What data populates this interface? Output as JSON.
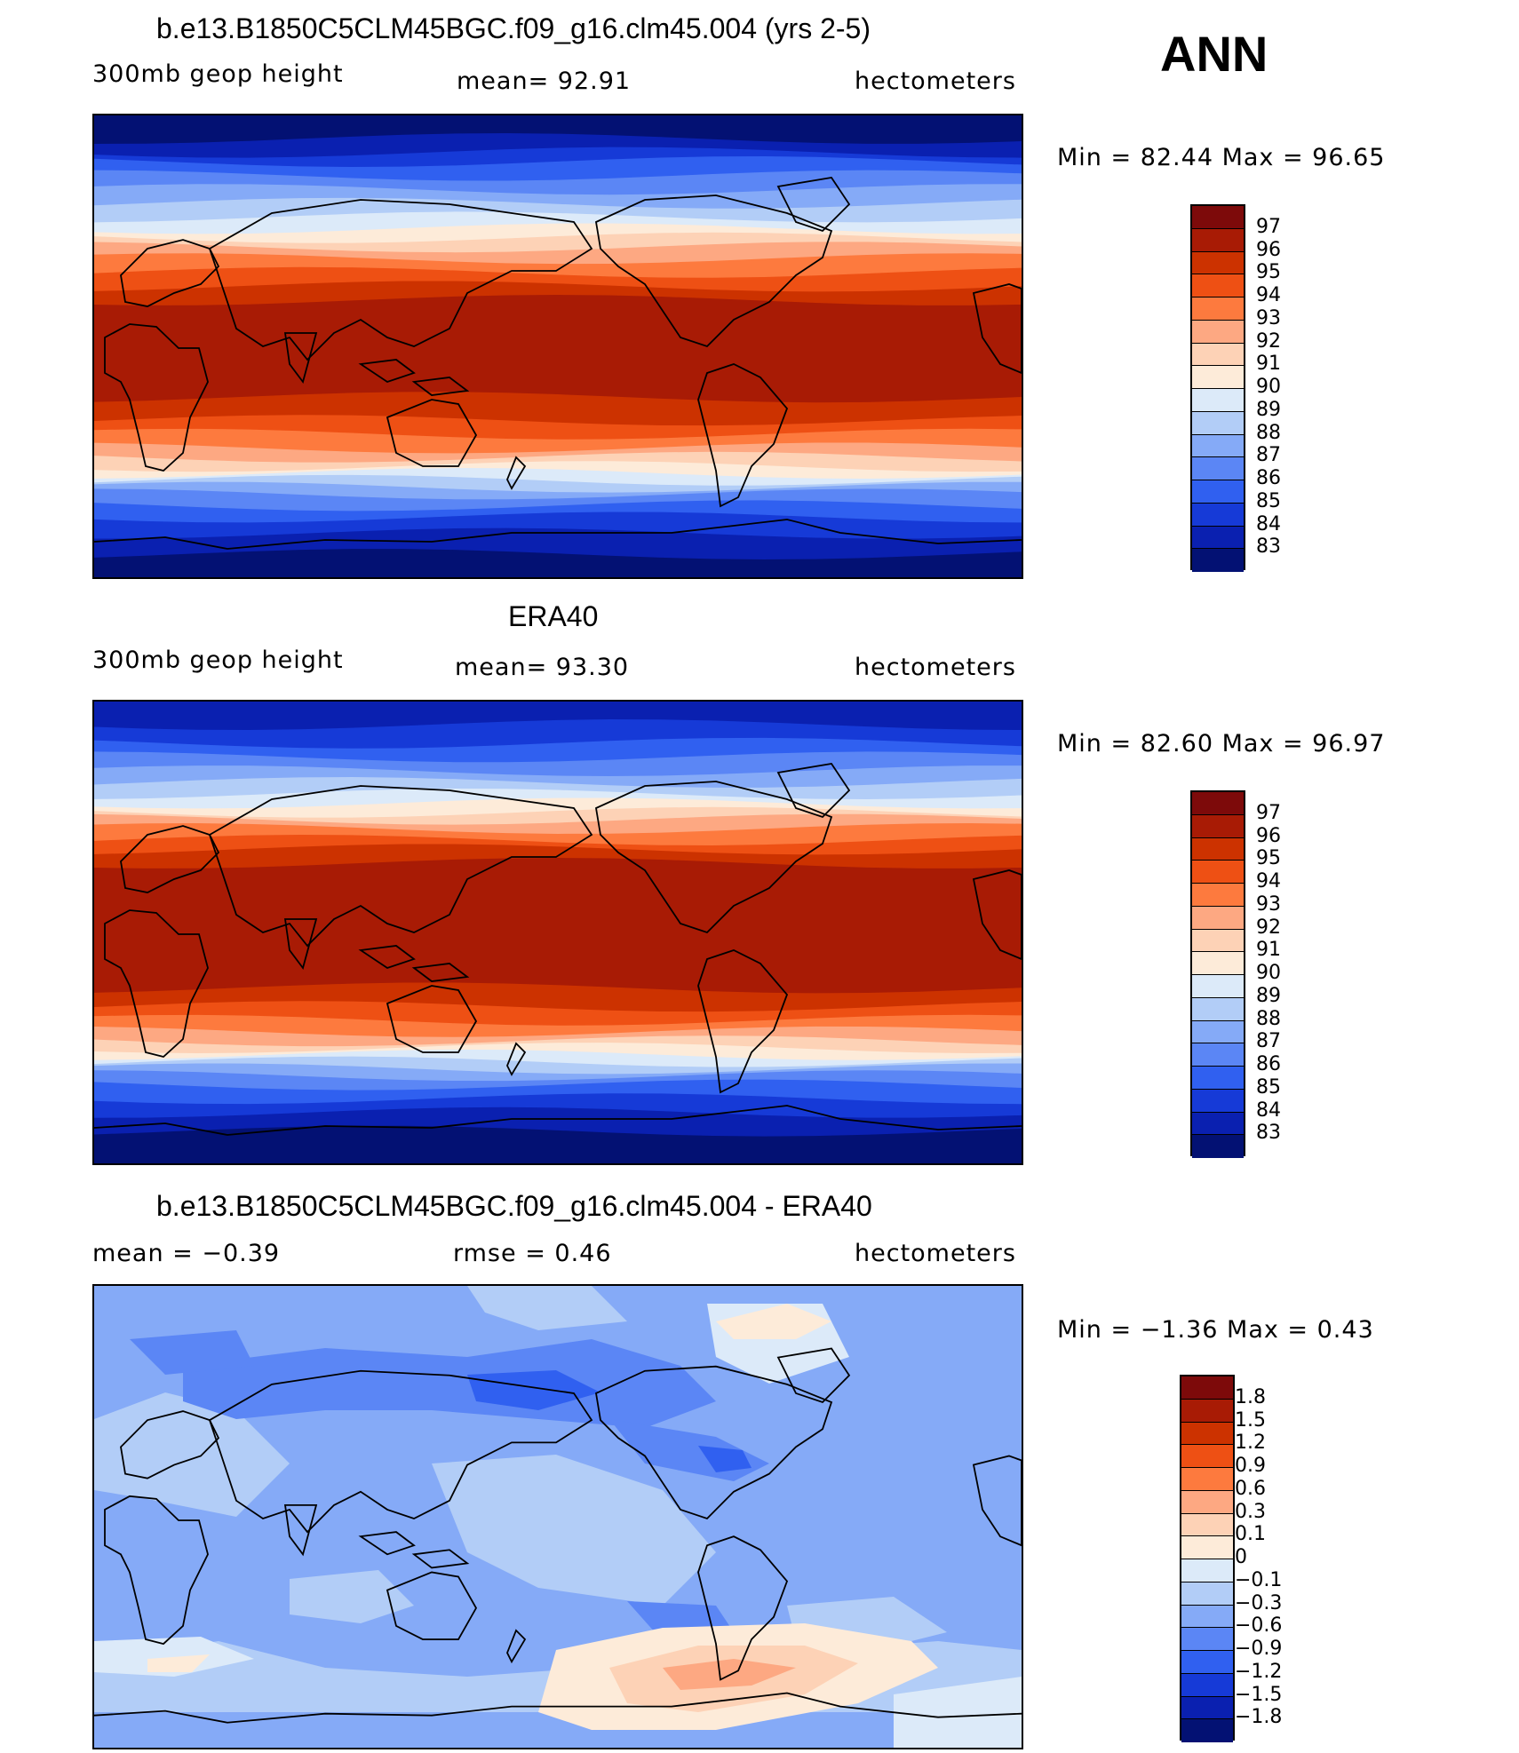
{
  "header": {
    "season": "ANN"
  },
  "panels": [
    {
      "title": "b.e13.B1850C5CLM45BGC.f09_g16.clm45.004 (yrs 2-5)",
      "left_label": "300mb  geop  height",
      "center_label": "mean=   92.91",
      "right_label": "hectometers",
      "minmax": "Min  =    82.44  Max  =    96.65",
      "levels": [
        "97",
        "96",
        "95",
        "94",
        "93",
        "92",
        "91",
        "90",
        "89",
        "88",
        "87",
        "86",
        "85",
        "84",
        "83"
      ]
    },
    {
      "title": "ERA40",
      "left_label": "300mb  geop  height",
      "center_label": "mean=   93.30",
      "right_label": "hectometers",
      "minmax": "Min  =    82.60  Max  =    96.97",
      "levels": [
        "97",
        "96",
        "95",
        "94",
        "93",
        "92",
        "91",
        "90",
        "89",
        "88",
        "87",
        "86",
        "85",
        "84",
        "83"
      ]
    },
    {
      "title": "b.e13.B1850C5CLM45BGC.f09_g16.clm45.004 - ERA40",
      "left_label": "mean  =    −0.39",
      "center_label": "rmse  =     0.46",
      "right_label": "hectometers",
      "minmax": "Min  =    −1.36  Max  =      0.43",
      "levels": [
        "1.8",
        "1.5",
        "1.2",
        "0.9",
        "0.6",
        "0.3",
        "0.1",
        "0",
        "−0.1",
        "−0.3",
        "−0.6",
        "−0.9",
        "−1.2",
        "−1.5",
        "−1.8"
      ]
    }
  ],
  "colors": {
    "abs_scale": [
      "#7d0a0a",
      "#a81b05",
      "#cc3200",
      "#ee5014",
      "#fd7a3e",
      "#fda882",
      "#fdd2b6",
      "#fdebd9",
      "#dceaf9",
      "#b2cdf7",
      "#85aaf7",
      "#5b86f5",
      "#3060f0",
      "#163ad7",
      "#0a20b0",
      "#031173"
    ],
    "diff_scale": [
      "#7d0a0a",
      "#a81b05",
      "#cc3200",
      "#ee5014",
      "#fd7a3e",
      "#fda882",
      "#fdd2b6",
      "#fdebd9",
      "#dceaf9",
      "#b2cdf7",
      "#85aaf7",
      "#5b86f5",
      "#3060f0",
      "#163ad7",
      "#0a20b0",
      "#031173"
    ]
  }
}
